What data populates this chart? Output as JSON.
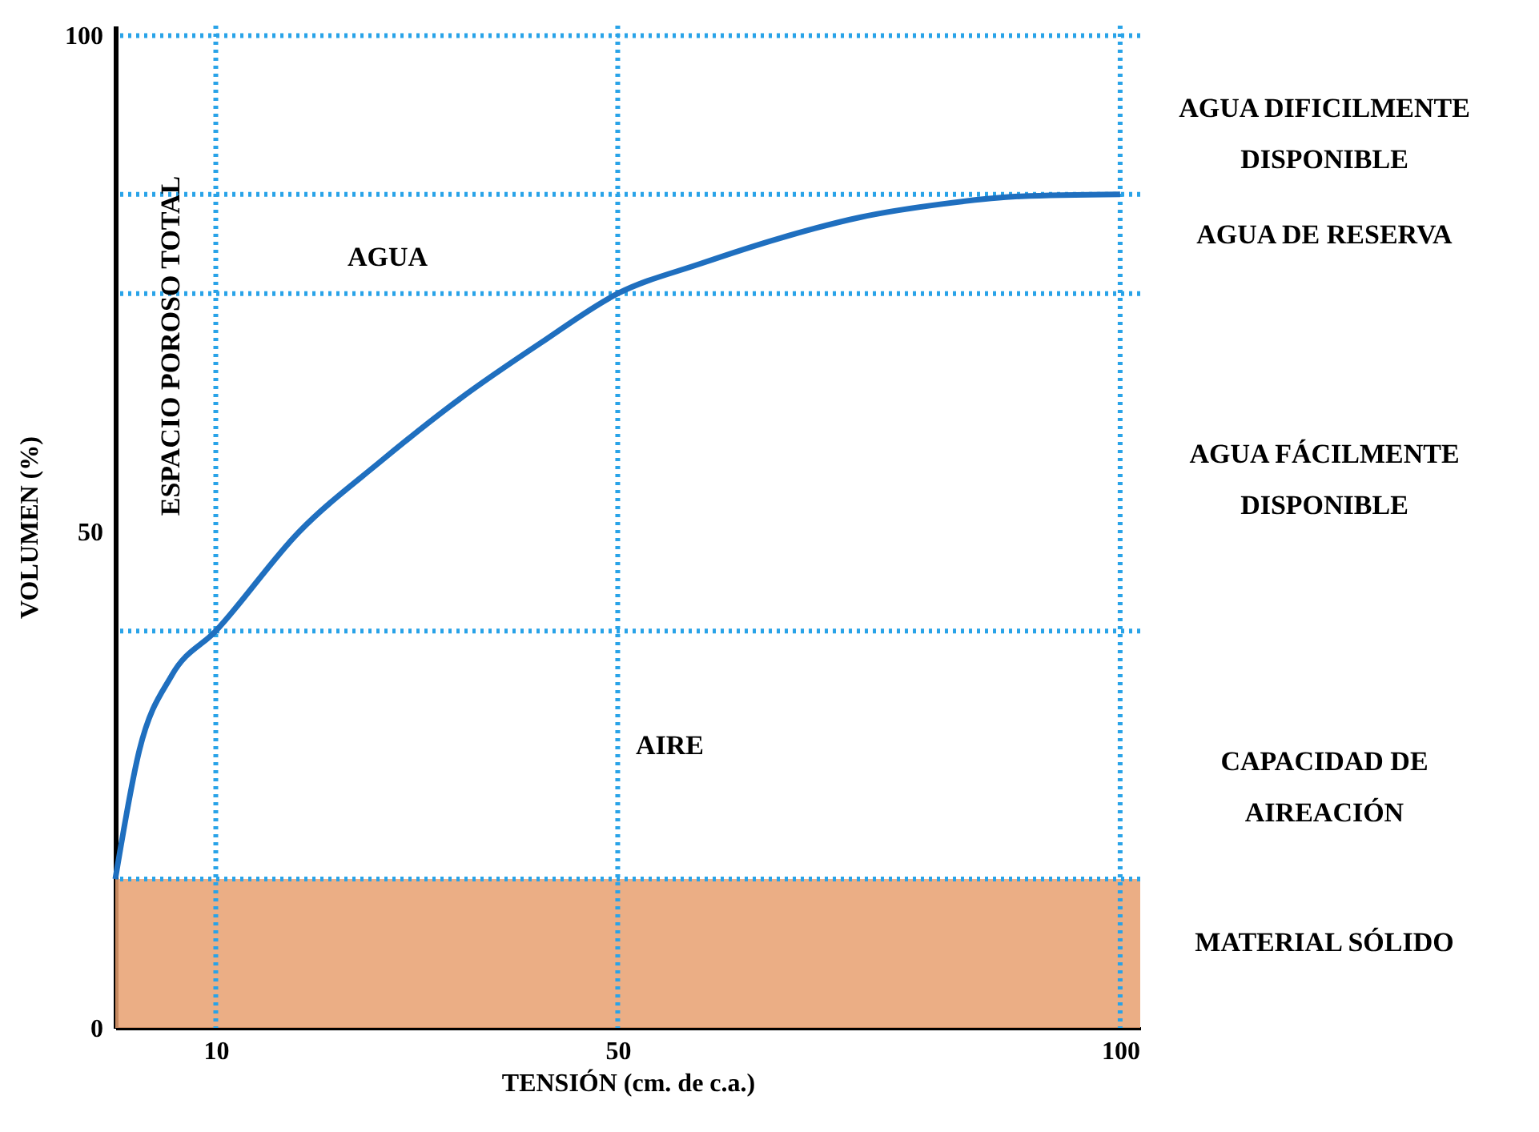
{
  "chart_data": {
    "type": "line",
    "xlabel": "TENSIÓN  (cm. de c.a.)",
    "ylabel": "VOLUMEN (%)",
    "xlim": [
      0,
      102
    ],
    "ylim": [
      0,
      101
    ],
    "xticks": [
      10,
      50,
      100
    ],
    "yticks": [
      0,
      50,
      100
    ],
    "series": [
      {
        "color": "#1f6fbf",
        "x": [
          0,
          2.4,
          5.6,
          10,
          18.3,
          26.3,
          34.3,
          42.3,
          50,
          58.2,
          66.2,
          74.2,
          82.1,
          90.1,
          100
        ],
        "values": [
          15,
          28,
          35.5,
          40,
          50,
          57,
          63.4,
          69,
          74,
          77,
          79.6,
          81.7,
          83,
          83.8,
          84
        ]
      }
    ],
    "bands": [
      {
        "axis": "y",
        "from": 0,
        "to": 15,
        "color": "#e8a070"
      }
    ],
    "ref_lines": [
      {
        "axis": "x",
        "value": 10,
        "color": "#29a3e8",
        "line_style": "dotted"
      },
      {
        "axis": "x",
        "value": 50,
        "color": "#29a3e8",
        "line_style": "dotted"
      },
      {
        "axis": "x",
        "value": 100,
        "color": "#29a3e8",
        "line_style": "dotted"
      },
      {
        "axis": "y",
        "value": 15,
        "color": "#29a3e8",
        "line_style": "dotted"
      },
      {
        "axis": "y",
        "value": 40,
        "color": "#29a3e8",
        "line_style": "dotted"
      },
      {
        "axis": "y",
        "value": 74,
        "color": "#29a3e8",
        "line_style": "dotted"
      },
      {
        "axis": "y",
        "value": 84,
        "color": "#29a3e8",
        "line_style": "dotted"
      },
      {
        "axis": "y",
        "value": 100,
        "color": "#29a3e8",
        "line_style": "dotted"
      }
    ],
    "annotations": [
      "AGUA",
      "AIRE",
      "ESPACIO POROSO TOTAL",
      "AGUA DIFICILMENTE DISPONIBLE",
      "AGUA DE RESERVA",
      "AGUA FÁCILMENTE DISPONIBLE",
      "CAPACIDAD DE AIREACIÓN",
      "MATERIAL SÓLIDO"
    ]
  }
}
